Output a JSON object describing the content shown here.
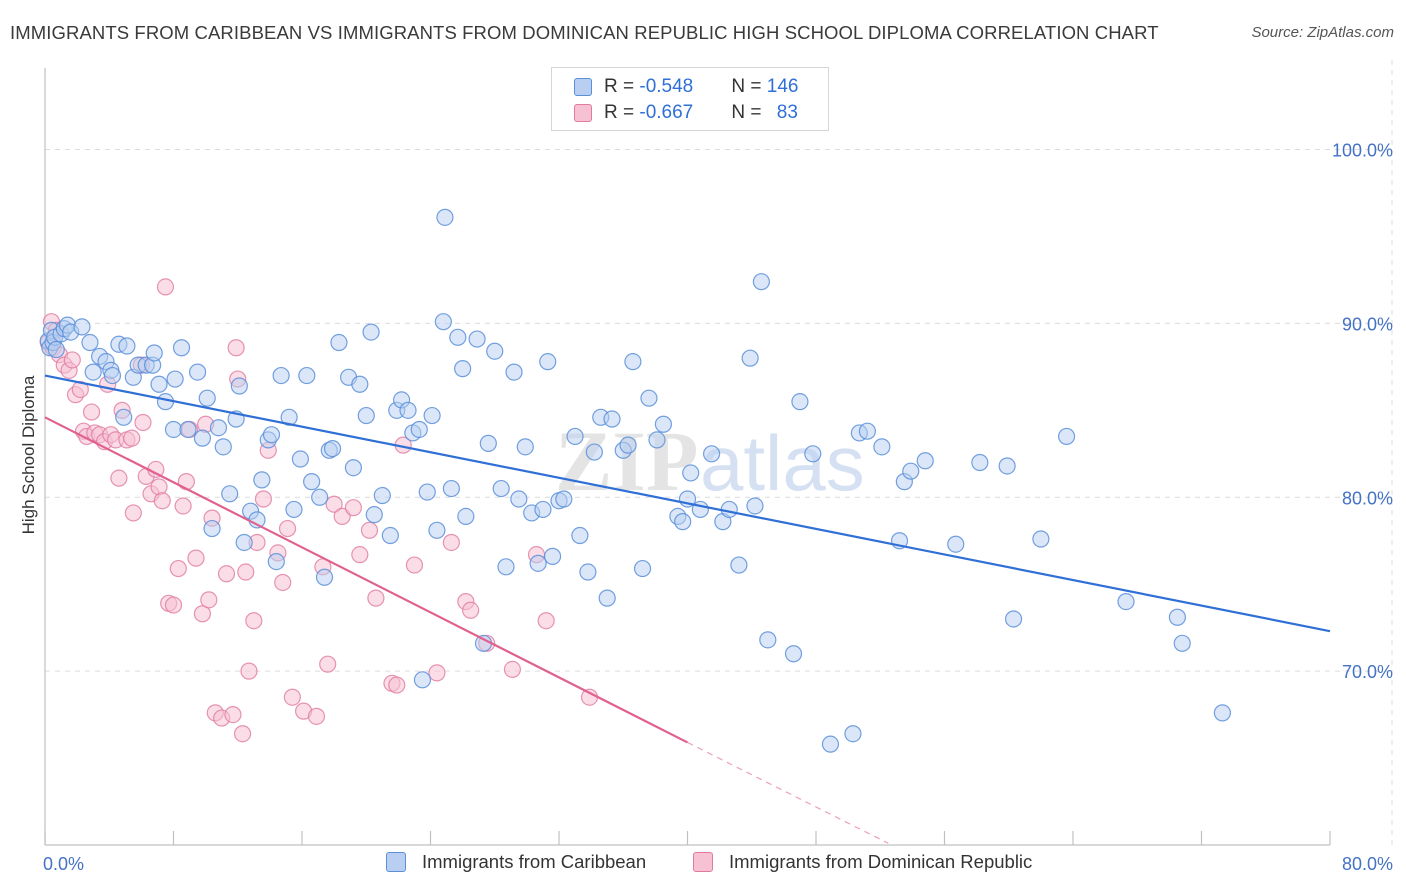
{
  "title": "IMMIGRANTS FROM CARIBBEAN VS IMMIGRANTS FROM DOMINICAN REPUBLIC HIGH SCHOOL DIPLOMA CORRELATION CHART",
  "source": "Source: ZipAtlas.com",
  "colors": {
    "blue": "#5b8fd9",
    "blue_fill": "#b8cff2",
    "pink": "#e07aa0",
    "pink_fill": "#f6c1d3",
    "blue_line": "#2f6fd6",
    "pink_line": "#e0608f",
    "axis_text": "#4472c4"
  },
  "legend": {
    "rows": [
      {
        "r_label": "R = ",
        "r_value": "-0.548",
        "n_label": "N = ",
        "n_value": "146"
      },
      {
        "r_label": "R = ",
        "r_value": "-0.667",
        "n_label": "N = ",
        "n_value": "83"
      }
    ]
  },
  "chart_data": {
    "type": "scatter",
    "title": "IMMIGRANTS FROM CARIBBEAN VS IMMIGRANTS FROM DOMINICAN REPUBLIC HIGH SCHOOL DIPLOMA CORRELATION CHART",
    "xlabel": "",
    "ylabel": "High School Diploma",
    "xlim": [
      0,
      80
    ],
    "ylim": [
      60,
      104
    ],
    "y_ticks": [
      {
        "value": 100,
        "label": "100.0%"
      },
      {
        "value": 90,
        "label": "90.0%"
      },
      {
        "value": 80,
        "label": "80.0%"
      },
      {
        "value": 70,
        "label": "70.0%"
      }
    ],
    "x_ticks": [
      {
        "value": 0,
        "label": "0.0%"
      },
      {
        "value": 80,
        "label": "80.0%"
      }
    ],
    "watermark": "ZIPatlas",
    "series": [
      {
        "name": "Immigrants from Caribbean",
        "color": "#5b8fd9",
        "trend": {
          "x": [
            0,
            80
          ],
          "y": [
            87.0,
            72.3
          ]
        },
        "points": [
          [
            0.2,
            89.0
          ],
          [
            0.3,
            88.6
          ],
          [
            0.4,
            89.6
          ],
          [
            0.5,
            88.9
          ],
          [
            0.6,
            89.2
          ],
          [
            0.7,
            88.5
          ],
          [
            1.0,
            89.4
          ],
          [
            1.2,
            89.7
          ],
          [
            1.4,
            89.9
          ],
          [
            1.6,
            89.5
          ],
          [
            2.3,
            89.8
          ],
          [
            2.8,
            88.9
          ],
          [
            3.0,
            87.2
          ],
          [
            3.4,
            88.1
          ],
          [
            3.8,
            87.8
          ],
          [
            4.1,
            87.3
          ],
          [
            4.2,
            87.0
          ],
          [
            4.6,
            88.8
          ],
          [
            4.9,
            84.6
          ],
          [
            5.1,
            88.7
          ],
          [
            5.5,
            86.9
          ],
          [
            5.8,
            87.6
          ],
          [
            6.3,
            87.6
          ],
          [
            6.7,
            87.6
          ],
          [
            6.8,
            88.3
          ],
          [
            7.1,
            86.5
          ],
          [
            7.5,
            85.5
          ],
          [
            8.0,
            83.9
          ],
          [
            8.1,
            86.8
          ],
          [
            8.5,
            88.6
          ],
          [
            8.9,
            83.9
          ],
          [
            9.5,
            87.2
          ],
          [
            9.8,
            83.4
          ],
          [
            10.1,
            85.7
          ],
          [
            10.4,
            78.2
          ],
          [
            10.8,
            84.0
          ],
          [
            11.1,
            82.9
          ],
          [
            11.5,
            80.2
          ],
          [
            11.9,
            84.5
          ],
          [
            12.1,
            86.4
          ],
          [
            12.4,
            77.4
          ],
          [
            12.8,
            79.2
          ],
          [
            13.2,
            78.7
          ],
          [
            13.5,
            81.0
          ],
          [
            13.9,
            83.3
          ],
          [
            14.1,
            83.6
          ],
          [
            14.4,
            76.3
          ],
          [
            14.7,
            87.0
          ],
          [
            15.2,
            84.6
          ],
          [
            15.5,
            79.3
          ],
          [
            15.9,
            82.2
          ],
          [
            16.3,
            87.0
          ],
          [
            16.6,
            80.9
          ],
          [
            17.1,
            80.0
          ],
          [
            17.4,
            75.4
          ],
          [
            17.7,
            82.7
          ],
          [
            17.9,
            82.8
          ],
          [
            18.3,
            88.9
          ],
          [
            18.9,
            86.9
          ],
          [
            19.2,
            81.7
          ],
          [
            19.6,
            86.5
          ],
          [
            20.0,
            84.7
          ],
          [
            20.3,
            89.5
          ],
          [
            20.5,
            79.0
          ],
          [
            21.0,
            80.1
          ],
          [
            21.5,
            77.8
          ],
          [
            21.9,
            85.0
          ],
          [
            22.2,
            85.6
          ],
          [
            22.6,
            85.0
          ],
          [
            22.9,
            83.7
          ],
          [
            23.3,
            83.9
          ],
          [
            23.5,
            69.5
          ],
          [
            23.8,
            80.3
          ],
          [
            24.1,
            84.7
          ],
          [
            24.4,
            78.1
          ],
          [
            24.8,
            90.1
          ],
          [
            25.3,
            80.5
          ],
          [
            25.7,
            89.2
          ],
          [
            26.0,
            87.4
          ],
          [
            26.2,
            78.9
          ],
          [
            26.9,
            89.1
          ],
          [
            27.3,
            71.6
          ],
          [
            27.6,
            83.1
          ],
          [
            28.0,
            88.4
          ],
          [
            28.4,
            80.5
          ],
          [
            28.7,
            76.0
          ],
          [
            29.2,
            87.2
          ],
          [
            29.5,
            79.9
          ],
          [
            29.9,
            82.9
          ],
          [
            30.3,
            79.1
          ],
          [
            30.7,
            76.2
          ],
          [
            31.0,
            79.3
          ],
          [
            31.3,
            87.8
          ],
          [
            31.6,
            76.6
          ],
          [
            32.0,
            79.8
          ],
          [
            32.3,
            79.9
          ],
          [
            33.0,
            83.5
          ],
          [
            33.3,
            77.8
          ],
          [
            33.8,
            75.7
          ],
          [
            34.2,
            82.6
          ],
          [
            34.6,
            84.6
          ],
          [
            35.0,
            74.2
          ],
          [
            35.3,
            84.5
          ],
          [
            36.0,
            82.7
          ],
          [
            36.3,
            83.0
          ],
          [
            36.6,
            87.8
          ],
          [
            37.2,
            75.9
          ],
          [
            37.6,
            85.7
          ],
          [
            38.1,
            83.3
          ],
          [
            38.5,
            84.2
          ],
          [
            39.4,
            78.9
          ],
          [
            39.7,
            78.6
          ],
          [
            40.0,
            79.9
          ],
          [
            40.2,
            81.4
          ],
          [
            40.8,
            79.3
          ],
          [
            41.5,
            82.5
          ],
          [
            42.2,
            78.6
          ],
          [
            42.6,
            79.3
          ],
          [
            43.2,
            76.1
          ],
          [
            43.9,
            88.0
          ],
          [
            44.2,
            79.5
          ],
          [
            44.6,
            92.4
          ],
          [
            45.0,
            71.8
          ],
          [
            46.6,
            71.0
          ],
          [
            47.0,
            85.5
          ],
          [
            47.8,
            82.5
          ],
          [
            48.9,
            65.8
          ],
          [
            50.3,
            66.4
          ],
          [
            50.7,
            83.7
          ],
          [
            51.2,
            83.8
          ],
          [
            52.1,
            82.9
          ],
          [
            53.2,
            77.5
          ],
          [
            53.5,
            80.9
          ],
          [
            53.9,
            81.5
          ],
          [
            54.8,
            82.1
          ],
          [
            56.7,
            77.3
          ],
          [
            58.2,
            82.0
          ],
          [
            59.9,
            81.8
          ],
          [
            60.3,
            73.0
          ],
          [
            62.0,
            77.6
          ],
          [
            63.6,
            83.5
          ],
          [
            67.3,
            74.0
          ],
          [
            70.5,
            73.1
          ],
          [
            70.8,
            71.6
          ],
          [
            73.3,
            67.6
          ],
          [
            24.9,
            96.1
          ]
        ]
      },
      {
        "name": "Immigrants from Dominican Republic",
        "color": "#e07aa0",
        "trend": {
          "x": [
            0,
            40
          ],
          "y": [
            84.6,
            65.9
          ]
        },
        "trend_dashed": {
          "x": [
            40,
            52.5
          ],
          "y": [
            65.9,
            60.1
          ]
        },
        "points": [
          [
            0.2,
            88.9
          ],
          [
            0.4,
            90.1
          ],
          [
            0.5,
            88.6
          ],
          [
            0.7,
            89.6
          ],
          [
            0.9,
            88.2
          ],
          [
            1.2,
            87.6
          ],
          [
            1.5,
            87.3
          ],
          [
            1.7,
            87.9
          ],
          [
            1.9,
            85.9
          ],
          [
            2.2,
            86.2
          ],
          [
            2.4,
            83.8
          ],
          [
            2.6,
            83.5
          ],
          [
            2.9,
            84.9
          ],
          [
            3.1,
            83.7
          ],
          [
            3.4,
            83.6
          ],
          [
            3.7,
            83.2
          ],
          [
            3.9,
            86.5
          ],
          [
            4.1,
            83.6
          ],
          [
            4.4,
            83.3
          ],
          [
            4.6,
            81.1
          ],
          [
            4.8,
            85.0
          ],
          [
            5.1,
            83.3
          ],
          [
            5.4,
            83.4
          ],
          [
            5.5,
            79.1
          ],
          [
            6.0,
            87.6
          ],
          [
            6.1,
            84.3
          ],
          [
            6.3,
            81.2
          ],
          [
            6.6,
            80.2
          ],
          [
            6.9,
            81.6
          ],
          [
            7.1,
            80.6
          ],
          [
            7.3,
            79.8
          ],
          [
            7.5,
            92.1
          ],
          [
            7.7,
            73.9
          ],
          [
            8.0,
            73.8
          ],
          [
            8.3,
            75.9
          ],
          [
            8.6,
            79.5
          ],
          [
            8.8,
            80.9
          ],
          [
            9.0,
            83.9
          ],
          [
            9.4,
            76.5
          ],
          [
            9.8,
            73.3
          ],
          [
            10.0,
            84.2
          ],
          [
            10.2,
            74.1
          ],
          [
            10.4,
            78.8
          ],
          [
            10.6,
            67.6
          ],
          [
            11.0,
            67.3
          ],
          [
            11.3,
            75.6
          ],
          [
            11.7,
            67.5
          ],
          [
            11.9,
            88.6
          ],
          [
            12.0,
            86.8
          ],
          [
            12.3,
            66.4
          ],
          [
            12.5,
            75.7
          ],
          [
            12.7,
            70.0
          ],
          [
            13.0,
            72.9
          ],
          [
            13.2,
            77.4
          ],
          [
            13.6,
            79.9
          ],
          [
            13.9,
            82.7
          ],
          [
            14.5,
            76.8
          ],
          [
            14.8,
            75.1
          ],
          [
            15.1,
            78.2
          ],
          [
            15.4,
            68.5
          ],
          [
            16.1,
            67.7
          ],
          [
            16.9,
            67.4
          ],
          [
            17.3,
            76.0
          ],
          [
            17.6,
            70.4
          ],
          [
            18.0,
            79.6
          ],
          [
            18.5,
            78.9
          ],
          [
            19.2,
            79.4
          ],
          [
            19.6,
            76.7
          ],
          [
            20.2,
            78.1
          ],
          [
            20.6,
            74.2
          ],
          [
            21.6,
            69.3
          ],
          [
            21.9,
            69.2
          ],
          [
            22.3,
            83.0
          ],
          [
            23.0,
            76.1
          ],
          [
            24.4,
            69.9
          ],
          [
            25.3,
            77.4
          ],
          [
            26.2,
            74.0
          ],
          [
            26.5,
            73.5
          ],
          [
            27.5,
            71.6
          ],
          [
            29.1,
            70.1
          ],
          [
            30.6,
            76.7
          ],
          [
            31.2,
            72.9
          ],
          [
            33.9,
            68.5
          ]
        ]
      }
    ]
  },
  "bottom_legend": {
    "items": [
      {
        "label": "Immigrants from Caribbean"
      },
      {
        "label": "Immigrants from Dominican Republic"
      }
    ]
  }
}
